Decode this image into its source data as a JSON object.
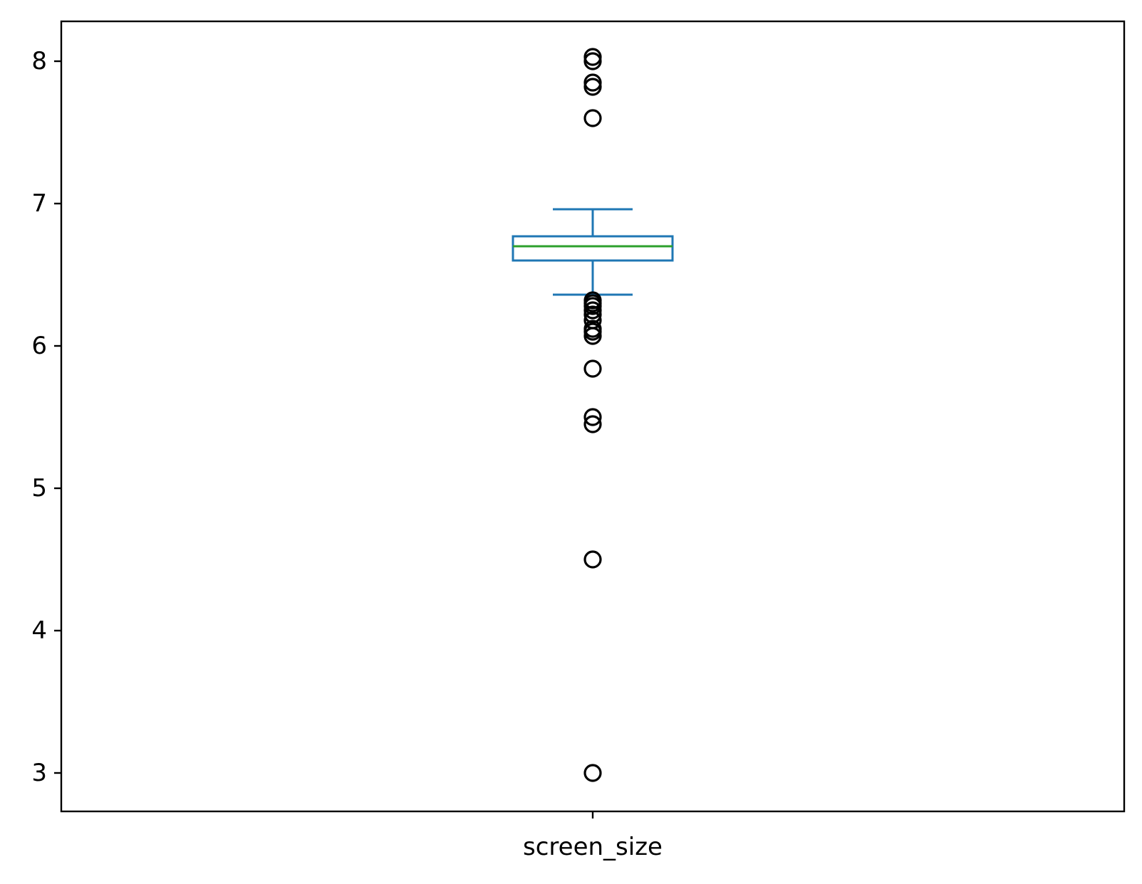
{
  "chart_data": {
    "type": "box",
    "categories": [
      "screen_size"
    ],
    "box": {
      "whisker_low": 6.36,
      "q1": 6.6,
      "median": 6.7,
      "q3": 6.77,
      "whisker_high": 6.96
    },
    "outliers": [
      8.03,
      8.0,
      7.85,
      7.82,
      7.6,
      6.32,
      6.3,
      6.28,
      6.25,
      6.22,
      6.18,
      6.12,
      6.1,
      6.07,
      5.84,
      5.5,
      5.45,
      4.5,
      3.0
    ],
    "ylim": [
      2.73,
      8.28
    ],
    "yticks": [
      3,
      4,
      5,
      6,
      7,
      8
    ],
    "ytick_labels": [
      "3",
      "4",
      "5",
      "6",
      "7",
      "8"
    ],
    "xlabel": "",
    "ylabel": "",
    "title": "",
    "grid": false,
    "colors": {
      "box": "#1f77b4",
      "median": "#2ca02c",
      "outlier": "#000000",
      "axes": "#000000"
    }
  }
}
